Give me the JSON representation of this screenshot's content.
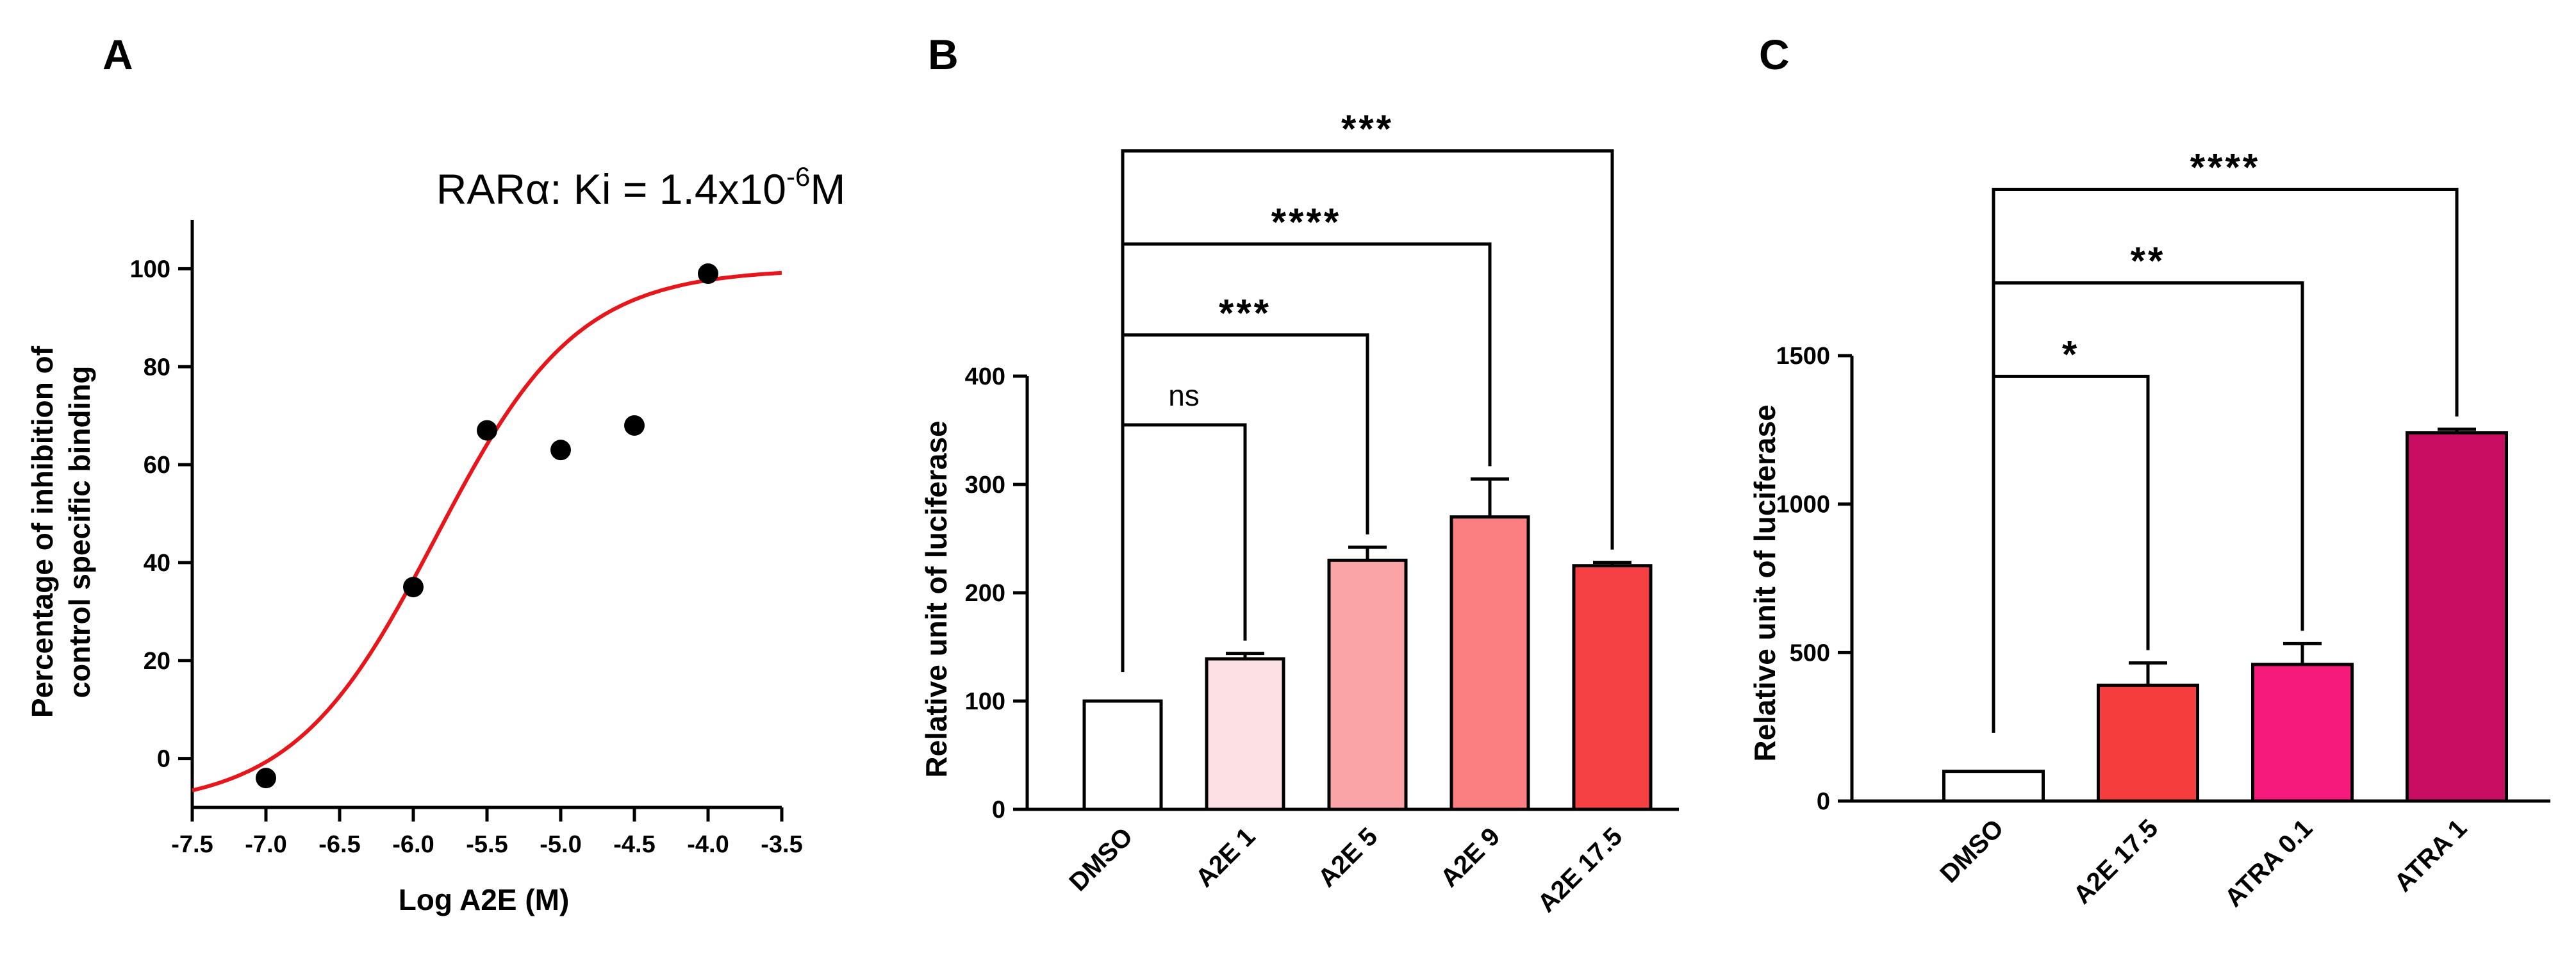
{
  "figure": {
    "panels": [
      {
        "letter": "A"
      },
      {
        "letter": "B"
      },
      {
        "letter": "C"
      }
    ]
  },
  "chart_data": [
    {
      "panel": "A",
      "type": "scatter",
      "title_prefix": "RARα: Ki = 1.4x10",
      "title_exponent": "-6",
      "title_suffix": "M",
      "xlabel": "Log A2E (M)",
      "ylabel_line1": "Percentage of inhibition of",
      "ylabel_line2": "control specific binding",
      "xlim": [
        -7.5,
        -3.5
      ],
      "ylim": [
        -10,
        110
      ],
      "xticks": [
        -7.5,
        -7.0,
        -6.5,
        -6.0,
        -5.5,
        -5.0,
        -4.5,
        -4.0,
        -3.5
      ],
      "xtick_labels": [
        "-7.5",
        "-7.0",
        "-6.5",
        "-6.0",
        "-5.5",
        "-5.0",
        "-4.5",
        "-4.0",
        "-3.5"
      ],
      "yticks": [
        0,
        20,
        40,
        60,
        80,
        100
      ],
      "ytick_labels": [
        "0",
        "20",
        "40",
        "60",
        "80",
        "100"
      ],
      "points": [
        {
          "x": -7.0,
          "y": -4
        },
        {
          "x": -6.0,
          "y": 35
        },
        {
          "x": -5.5,
          "y": 67
        },
        {
          "x": -5.0,
          "y": 63
        },
        {
          "x": -4.5,
          "y": 68
        },
        {
          "x": -4.0,
          "y": 99
        }
      ],
      "fit": {
        "model": "sigmoid",
        "bottom": -10,
        "top": 100,
        "log_ec50": -5.85,
        "hill": 0.9,
        "color": "#e8161b"
      }
    },
    {
      "panel": "B",
      "type": "bar",
      "ylabel": "Relative unit of luciferase",
      "ylim": [
        0,
        400
      ],
      "yticks": [
        0,
        100,
        200,
        300,
        400
      ],
      "ytick_labels": [
        "0",
        "100",
        "200",
        "300",
        "400"
      ],
      "categories": [
        "DMSO",
        "A2E 1",
        "A2E 5",
        "A2E 9",
        "A2E 17.5"
      ],
      "values": [
        100,
        139,
        230,
        270,
        225
      ],
      "errors": [
        0,
        5,
        12,
        35,
        3
      ],
      "colors": [
        "#ffffff",
        "#fde0e3",
        "#fba4a8",
        "#fb7e81",
        "#f64144"
      ],
      "comparisons": [
        {
          "from": 0,
          "to": 1,
          "label": "ns",
          "level": 355
        },
        {
          "from": 0,
          "to": 2,
          "label": "***",
          "level": 438
        },
        {
          "from": 0,
          "to": 3,
          "label": "****",
          "level": 522
        },
        {
          "from": 0,
          "to": 4,
          "label": "***",
          "level": 608
        }
      ]
    },
    {
      "panel": "C",
      "type": "bar",
      "ylabel": "Relative unit of luciferase",
      "ylim": [
        0,
        1500
      ],
      "yticks": [
        0,
        500,
        1000,
        1500
      ],
      "ytick_labels": [
        "0",
        "500",
        "1000",
        "1500"
      ],
      "categories": [
        "DMSO",
        "A2E 17.5",
        "ATRA 0.1",
        "ATRA 1"
      ],
      "values": [
        100,
        390,
        460,
        1240
      ],
      "errors": [
        0,
        75,
        70,
        12
      ],
      "colors": [
        "#ffffff",
        "#f43d3c",
        "#f61a7d",
        "#c90d62"
      ],
      "comparisons": [
        {
          "from": 0,
          "to": 1,
          "label": "*",
          "level": 1430
        },
        {
          "from": 0,
          "to": 2,
          "label": "**",
          "level": 1745
        },
        {
          "from": 0,
          "to": 3,
          "label": "****",
          "level": 2060
        }
      ]
    }
  ]
}
